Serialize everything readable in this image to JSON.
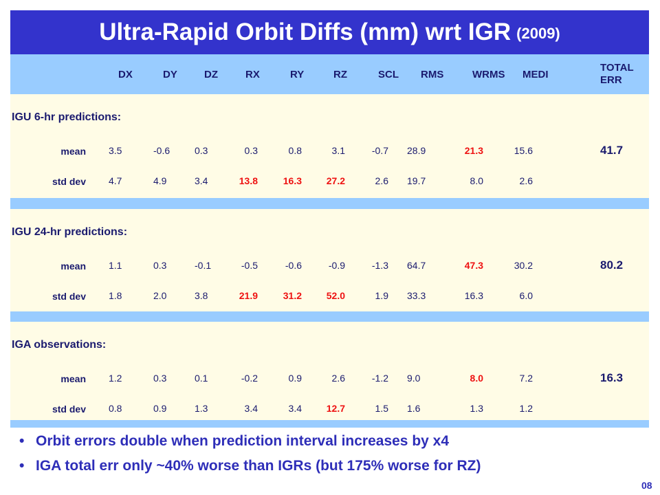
{
  "title": {
    "main": "Ultra-Rapid Orbit Diffs (mm) wrt IGR",
    "year": "(2009)"
  },
  "columns": [
    "DX",
    "DY",
    "DZ",
    "RX",
    "RY",
    "RZ",
    "SCL",
    "RMS",
    "WRMS",
    "MEDI",
    "TOTAL ERR"
  ],
  "sections": [
    {
      "label": "IGU 6-hr predictions:",
      "rows": [
        {
          "label": "mean",
          "values": [
            "3.5",
            "-0.6",
            "0.3",
            "0.3",
            "0.8",
            "3.1",
            "-0.7",
            "28.9",
            "21.3",
            "15.6"
          ],
          "red": [
            false,
            false,
            false,
            false,
            false,
            false,
            false,
            false,
            true,
            false
          ]
        },
        {
          "label": "std dev",
          "values": [
            "4.7",
            "4.9",
            "3.4",
            "13.8",
            "16.3",
            "27.2",
            "2.6",
            "19.7",
            "8.0",
            "2.6"
          ],
          "red": [
            false,
            false,
            false,
            true,
            true,
            true,
            false,
            false,
            false,
            false
          ]
        }
      ],
      "total": "41.7"
    },
    {
      "label": "IGU 24-hr predictions:",
      "rows": [
        {
          "label": "mean",
          "values": [
            "1.1",
            "0.3",
            "-0.1",
            "-0.5",
            "-0.6",
            "-0.9",
            "-1.3",
            "64.7",
            "47.3",
            "30.2"
          ],
          "red": [
            false,
            false,
            false,
            false,
            false,
            false,
            false,
            false,
            true,
            false
          ]
        },
        {
          "label": "std dev",
          "values": [
            "1.8",
            "2.0",
            "3.8",
            "21.9",
            "31.2",
            "52.0",
            "1.9",
            "33.3",
            "16.3",
            "6.0"
          ],
          "red": [
            false,
            false,
            false,
            true,
            true,
            true,
            false,
            false,
            false,
            false
          ]
        }
      ],
      "total": "80.2"
    },
    {
      "label": "IGA observations:",
      "rows": [
        {
          "label": "mean",
          "values": [
            "1.2",
            "0.3",
            "0.1",
            "-0.2",
            "0.9",
            "2.6",
            "-1.2",
            "9.0",
            "8.0",
            "7.2"
          ],
          "red": [
            false,
            false,
            false,
            false,
            false,
            false,
            false,
            false,
            true,
            false
          ]
        },
        {
          "label": "std dev",
          "values": [
            "0.8",
            "0.9",
            "1.3",
            "3.4",
            "3.4",
            "12.7",
            "1.5",
            "1.6",
            "1.3",
            "1.2"
          ],
          "red": [
            false,
            false,
            false,
            false,
            false,
            true,
            false,
            false,
            false,
            false
          ]
        }
      ],
      "total": "16.3"
    }
  ],
  "bullets": [
    "Orbit errors double when prediction interval increases by x4",
    "IGA total err only ~40% worse than IGRs (but 175% worse for RZ)"
  ],
  "bullet_symbol": "•",
  "slide_number": "08",
  "colors": {
    "title_bg": "#3333cc",
    "header_bg": "#99ccff",
    "row_bg": "#fffce6",
    "text": "#1a1a6e",
    "highlight": "#ee1111",
    "bullet_text": "#2e2eb8"
  }
}
